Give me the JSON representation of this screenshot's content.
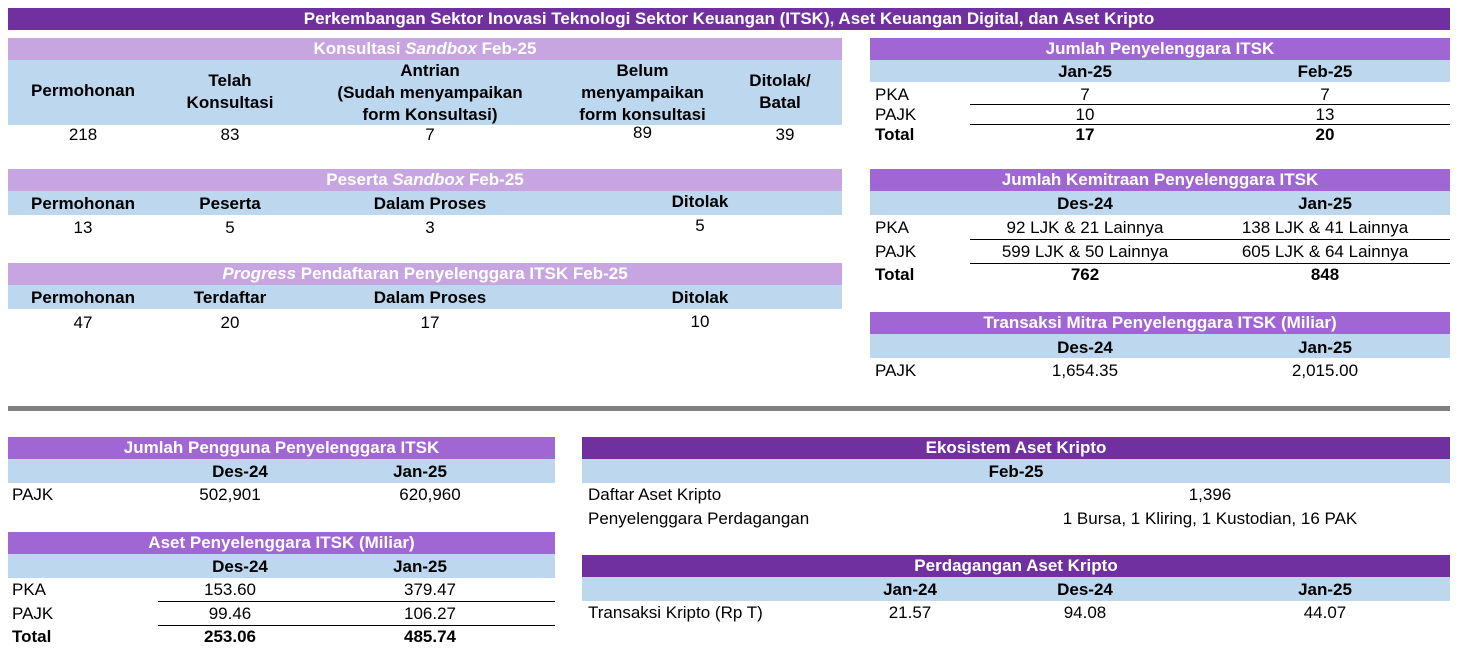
{
  "main_title": "Perkembangan Sektor Inovasi Teknologi Sektor Keuangan (ITSK), Aset Keuangan Digital, dan Aset Kripto",
  "konsultasi": {
    "title_pre": "Konsultasi ",
    "title_italic": "Sandbox",
    "title_post": " Feb-25",
    "headers": [
      "Permohonan",
      "Telah\nKonsultasi",
      "Antrian\n(Sudah menyampaikan\nform Konsultasi)",
      "Belum\nmenyampaikan\nform konsultasi",
      "Ditolak/\nBatal"
    ],
    "values": [
      "218",
      "83",
      "7",
      "89",
      "39"
    ]
  },
  "peserta": {
    "title_pre": "Peserta ",
    "title_italic": "Sandbox",
    "title_post": " Feb-25",
    "headers": [
      "Permohonan",
      "Peserta",
      "Dalam Proses",
      "Ditolak"
    ],
    "values": [
      "13",
      "5",
      "3",
      "5"
    ]
  },
  "progress": {
    "title_italic": "Progress",
    "title_post": " Pendaftaran Penyelenggara ITSK Feb-25",
    "headers": [
      "Permohonan",
      "Terdaftar",
      "Dalam Proses",
      "Ditolak"
    ],
    "values": [
      "47",
      "20",
      "17",
      "10"
    ]
  },
  "jumlah_penyelenggara": {
    "title": "Jumlah Penyelenggara ITSK",
    "col1": "Jan-25",
    "col2": "Feb-25",
    "rows": [
      {
        "label": "PKA",
        "v1": "7",
        "v2": "7"
      },
      {
        "label": "PAJK",
        "v1": "10",
        "v2": "13"
      }
    ],
    "total": {
      "label": "Total",
      "v1": "17",
      "v2": "20"
    }
  },
  "kemitraan": {
    "title": "Jumlah Kemitraan Penyelenggara ITSK",
    "col1": "Des-24",
    "col2": "Jan-25",
    "rows": [
      {
        "label": "PKA",
        "v1": "92 LJK & 21 Lainnya",
        "v2": "138 LJK & 41 Lainnya"
      },
      {
        "label": "PAJK",
        "v1": "599 LJK & 50 Lainnya",
        "v2": "605 LJK & 64 Lainnya"
      }
    ],
    "total": {
      "label": "Total",
      "v1": "762",
      "v2": "848"
    }
  },
  "transaksi_mitra": {
    "title": "Transaksi Mitra Penyelenggara ITSK (Miliar)",
    "col1": "Des-24",
    "col2": "Jan-25",
    "rows": [
      {
        "label": "PAJK",
        "v1": "1,654.35",
        "v2": "2,015.00"
      }
    ]
  },
  "pengguna": {
    "title": "Jumlah Pengguna Penyelenggara ITSK",
    "col1": "Des-24",
    "col2": "Jan-25",
    "rows": [
      {
        "label": "PAJK",
        "v1": "502,901",
        "v2": "620,960"
      }
    ]
  },
  "aset": {
    "title": "Aset Penyelenggara ITSK (Miliar)",
    "col1": "Des-24",
    "col2": "Jan-25",
    "rows": [
      {
        "label": "PKA",
        "v1": "153.60",
        "v2": "379.47"
      },
      {
        "label": "PAJK",
        "v1": "99.46",
        "v2": "106.27"
      }
    ],
    "total": {
      "label": "Total",
      "v1": "253.06",
      "v2": "485.74"
    }
  },
  "ekosistem": {
    "title": "Ekosistem Aset Kripto",
    "col": "Feb-25",
    "rows": [
      {
        "label": "Daftar Aset Kripto",
        "value": "1,396"
      },
      {
        "label": "Penyelenggara Perdagangan",
        "value": "1 Bursa, 1 Kliring, 1 Kustodian, 16 PAK"
      }
    ]
  },
  "perdagangan": {
    "title": "Perdagangan Aset Kripto",
    "cols": [
      "Jan-24",
      "Des-24",
      "Jan-25"
    ],
    "rows": [
      {
        "label": "Transaksi Kripto (Rp T)",
        "values": [
          "21.57",
          "94.08",
          "44.07"
        ]
      }
    ]
  },
  "colors": {
    "dark_purple": "#7030a0",
    "mid_purple": "#a066d3",
    "light_purple": "#c7a5e0",
    "light_blue": "#bdd7ee",
    "separator": "#808080"
  }
}
